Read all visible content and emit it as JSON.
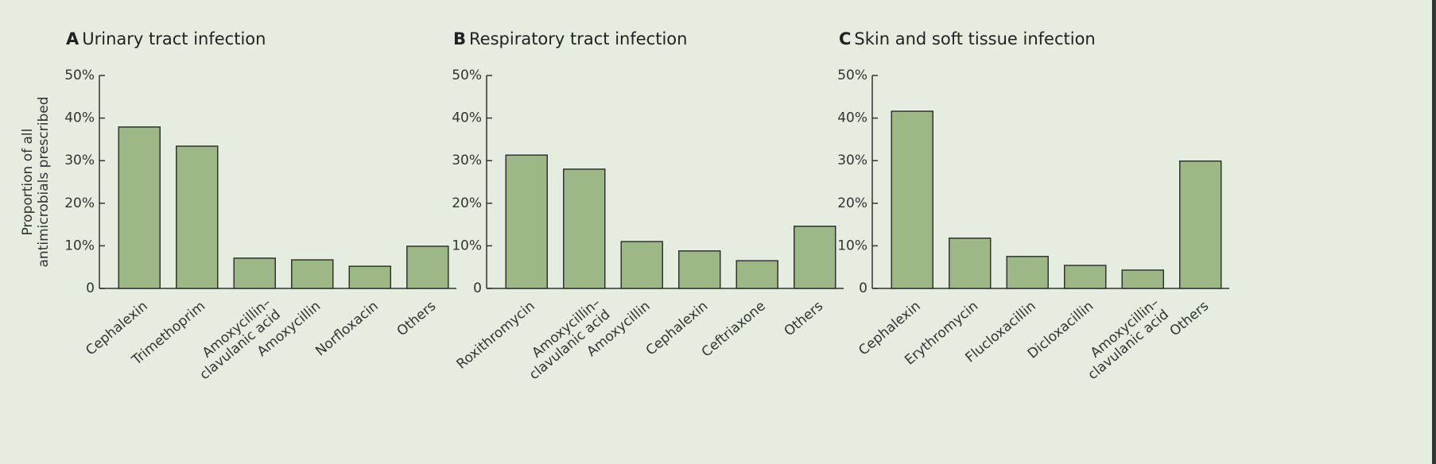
{
  "chart_data": [
    {
      "type": "bar",
      "panel": "A",
      "title": "Urinary tract infection",
      "ylabel": "Proportion of all\nantimicrobials prescribed",
      "categories": [
        "Cephalexin",
        "Trimethoprim",
        "Amoxycillin–\nclavulanic acid",
        "Amoxycillin",
        "Norfloxacin",
        "Others"
      ],
      "values": [
        37.9,
        33.4,
        7.1,
        6.7,
        5.2,
        9.9
      ],
      "color": "#9db787",
      "ylim": [
        0,
        50
      ],
      "yticks": [
        0,
        {
          "value": 10,
          "label": "10%"
        },
        {
          "value": 20,
          "label": "20%"
        },
        {
          "value": 30,
          "label": "30%"
        },
        {
          "value": 40,
          "label": "40%"
        },
        {
          "value": 50,
          "label": "50%"
        }
      ]
    },
    {
      "type": "bar",
      "panel": "B",
      "title": "Respiratory tract infection",
      "categories": [
        "Roxithromycin",
        "Amoxycillin–\nclavulanic acid",
        "Amoxycillin",
        "Cephalexin",
        "Ceftriaxone",
        "Others"
      ],
      "values": [
        31.3,
        28,
        11,
        8.8,
        6.5,
        14.6
      ],
      "color": "#9db787",
      "ylim": [
        0,
        50
      ],
      "yticks": [
        0,
        {
          "value": 10,
          "label": "10%"
        },
        {
          "value": 20,
          "label": "20%"
        },
        {
          "value": 30,
          "label": "30%"
        },
        {
          "value": 40,
          "label": "40%"
        },
        {
          "value": 50,
          "label": "50%"
        }
      ]
    },
    {
      "type": "bar",
      "panel": "C",
      "title": "Skin and soft tissue infection",
      "categories": [
        "Cephalexin",
        "Erythromycin",
        "Flucloxacillin",
        "Dicloxacillin",
        "Amoxycillin–\nclavulanic acid",
        "Others"
      ],
      "values": [
        41.6,
        11.8,
        7.5,
        5.4,
        4.3,
        29.9
      ],
      "color": "#9db787",
      "ylim": [
        0,
        50
      ],
      "yticks": [
        0,
        {
          "value": 10,
          "label": "10%"
        },
        {
          "value": 20,
          "label": "20%"
        },
        {
          "value": 30,
          "label": "30%"
        },
        {
          "value": 40,
          "label": "40%"
        },
        {
          "value": 50,
          "label": "50%"
        }
      ]
    }
  ]
}
